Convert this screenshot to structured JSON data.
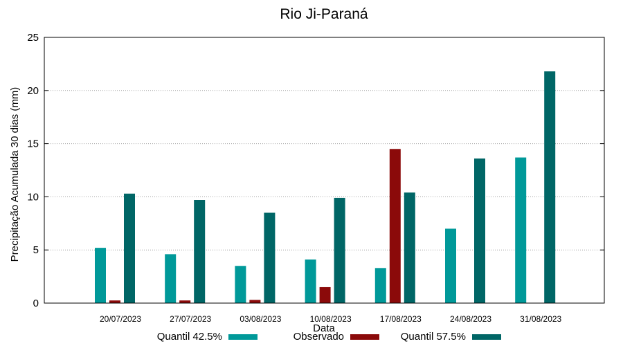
{
  "chart_data": {
    "type": "bar",
    "title": "Rio Ji-Paraná",
    "xlabel": "Data",
    "ylabel": "Precipitação Acumulada 30 dias (mm)",
    "ylim": [
      0,
      25
    ],
    "yticks": [
      0,
      5,
      10,
      15,
      20,
      25
    ],
    "grid": true,
    "legend_position": "bottom",
    "categories": [
      "20/07/2023",
      "27/07/2023",
      "03/08/2023",
      "10/08/2023",
      "17/08/2023",
      "24/08/2023",
      "31/08/2023"
    ],
    "series": [
      {
        "name": "Quantil 42.5%",
        "color": "#009999",
        "values": [
          5.2,
          4.6,
          3.5,
          4.1,
          3.3,
          7.0,
          13.7
        ]
      },
      {
        "name": "Observado",
        "color": "#8b0a0a",
        "values": [
          0.25,
          0.25,
          0.3,
          1.5,
          14.5,
          null,
          null
        ]
      },
      {
        "name": "Quantil 57.5%",
        "color": "#006666",
        "values": [
          10.3,
          9.7,
          8.5,
          9.9,
          10.4,
          13.6,
          21.8
        ]
      }
    ]
  }
}
